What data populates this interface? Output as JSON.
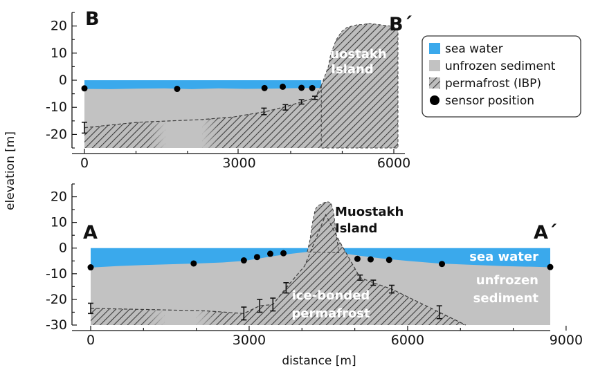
{
  "axes": {
    "ylabel": "elevation [m]",
    "xlabel": "distance [m]"
  },
  "legend": {
    "placement": "top-right",
    "items": [
      {
        "label": "sea water",
        "color": "#3aa9ec",
        "symbol": "square"
      },
      {
        "label": "unfrozen sediment",
        "color": "#c2c2c2",
        "symbol": "square"
      },
      {
        "label": "permafrost (IBP)",
        "color": "hatched",
        "symbol": "square"
      },
      {
        "label": "sensor position",
        "color": "#000000",
        "symbol": "circle"
      }
    ]
  },
  "colors": {
    "sea": "#3aa9ec",
    "sediment": "#c2c2c2",
    "permafrost_line": "#3c3c3c"
  },
  "chart_data": [
    {
      "type": "area",
      "panel": "B-B′",
      "labels": {
        "start": "B",
        "end": "B´",
        "island": [
          "Muostakh",
          "Island"
        ]
      },
      "xlim": [
        0,
        6000
      ],
      "ylim": [
        -25,
        25
      ],
      "xticks": [
        0,
        3000,
        6000
      ],
      "yticks": [
        -20,
        -10,
        0,
        10,
        20
      ],
      "sea_surface": 0,
      "seabed_x": [
        0,
        500,
        1000,
        1500,
        2000,
        2500,
        3000,
        3500,
        4000,
        4400
      ],
      "seabed_y": [
        -3.2,
        -3.3,
        -3.1,
        -3.0,
        -3.3,
        -3.0,
        -3.2,
        -3.1,
        -2.9,
        -2.8
      ],
      "island_x": [
        4420,
        4550,
        4600,
        4700,
        4800,
        4900,
        5000,
        5100,
        5200,
        5300,
        5500,
        5700,
        5850
      ],
      "island_y": [
        -2,
        5,
        10,
        15,
        18,
        19.5,
        20,
        20.5,
        20.5,
        21,
        20.5,
        20,
        19
      ],
      "permafrost_table_x": [
        0,
        1000,
        2200,
        2800,
        3400,
        3800,
        4050,
        4300,
        4420
      ],
      "permafrost_table_y": [
        -17.5,
        -15.5,
        -14.5,
        -13.5,
        -11.5,
        -9.5,
        -8,
        -6.5,
        -2
      ],
      "permafrost_error_bars": [
        {
          "x": 0,
          "y": -17.5,
          "err": 2
        },
        {
          "x": 3350,
          "y": -11.5,
          "err": 1.2
        },
        {
          "x": 3750,
          "y": -10,
          "err": 1
        },
        {
          "x": 4050,
          "y": -8,
          "err": 0.8
        },
        {
          "x": 4300,
          "y": -6.5,
          "err": 0.6
        }
      ],
      "sensor_positions": [
        {
          "x": 0,
          "y": -3
        },
        {
          "x": 1730,
          "y": -3.2
        },
        {
          "x": 3360,
          "y": -2.9
        },
        {
          "x": 3700,
          "y": -2.4
        },
        {
          "x": 4050,
          "y": -2.8
        },
        {
          "x": 4250,
          "y": -2.9
        }
      ]
    },
    {
      "type": "area",
      "panel": "A-A′",
      "labels": {
        "start": "A",
        "end": "A´",
        "island": [
          "Muostakh",
          "Island"
        ],
        "sea": "sea water",
        "sediment": [
          "unfrozen",
          "sediment"
        ],
        "permafrost": [
          "ice-bonded",
          "permafrost"
        ]
      },
      "xlim": [
        0,
        8700
      ],
      "ylim": [
        -30,
        25
      ],
      "xticks": [
        0,
        3000,
        6000,
        9000
      ],
      "yticks": [
        -30,
        -20,
        -10,
        0,
        10,
        20
      ],
      "sea_surface": 0,
      "seabed_x": [
        0,
        500,
        1000,
        1500,
        2000,
        2500,
        2900,
        3200,
        3500,
        3800,
        4100,
        4700,
        5100,
        5500,
        6000,
        6600,
        7200,
        7800,
        8400,
        8700
      ],
      "seabed_y": [
        -7.6,
        -7,
        -6.6,
        -6.3,
        -6.0,
        -5.6,
        -5.0,
        -4.0,
        -3.0,
        -2.2,
        -1.5,
        -1.8,
        -3.0,
        -4.0,
        -5.0,
        -6.0,
        -6.5,
        -7.0,
        -7.3,
        -7.5
      ],
      "island_x": [
        4100,
        4150,
        4200,
        4250,
        4300,
        4350,
        4400,
        4450,
        4500,
        4550,
        4600,
        4650,
        4700
      ],
      "island_y": [
        -1.5,
        3,
        10,
        15,
        16.5,
        17,
        17.5,
        18,
        18,
        17.5,
        14,
        5,
        -1.8
      ],
      "permafrost_x": [
        0,
        1200,
        2200,
        2900,
        3200,
        3450,
        3700,
        4050,
        4450,
        4700,
        5100,
        5350,
        5700,
        6600,
        7100
      ],
      "permafrost_y": [
        -23.5,
        -24,
        -24.5,
        -25.5,
        -22.5,
        -22,
        -15.5,
        -7,
        13,
        3,
        -11.5,
        -13.5,
        -16,
        -25,
        -30
      ],
      "permafrost_error_bars": [
        {
          "x": 0,
          "y": -23.5,
          "err": 2
        },
        {
          "x": 2900,
          "y": -25.5,
          "err": 2.5
        },
        {
          "x": 3200,
          "y": -22.5,
          "err": 2.5
        },
        {
          "x": 3450,
          "y": -22,
          "err": 2.5
        },
        {
          "x": 3700,
          "y": -15.5,
          "err": 2
        },
        {
          "x": 5100,
          "y": -11.5,
          "err": 1
        },
        {
          "x": 5350,
          "y": -13.5,
          "err": 1
        },
        {
          "x": 5700,
          "y": -16,
          "err": 1.5
        },
        {
          "x": 6600,
          "y": -25,
          "err": 2.5
        }
      ],
      "sensor_positions": [
        {
          "x": 0,
          "y": -7.5
        },
        {
          "x": 1950,
          "y": -6
        },
        {
          "x": 2900,
          "y": -4.8
        },
        {
          "x": 3150,
          "y": -3.5
        },
        {
          "x": 3400,
          "y": -2.2
        },
        {
          "x": 3650,
          "y": -2
        },
        {
          "x": 5050,
          "y": -4.2
        },
        {
          "x": 5300,
          "y": -4.4
        },
        {
          "x": 5650,
          "y": -4.6
        },
        {
          "x": 6650,
          "y": -6.2
        },
        {
          "x": 8700,
          "y": -7.4
        }
      ]
    }
  ]
}
